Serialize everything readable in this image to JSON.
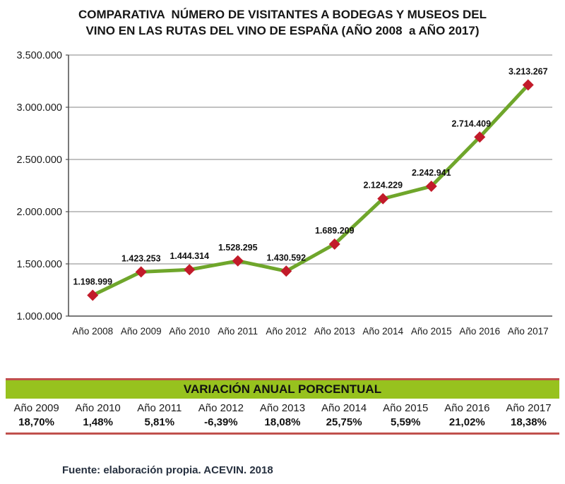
{
  "title": {
    "line1": "COMPARATIVA  NÚMERO DE VISITANTES A BODEGAS Y MUSEOS DEL",
    "line2": "VINO EN LAS RUTAS DEL VINO DE ESPAÑA (AÑO 2008  a AÑO 2017)"
  },
  "chart_data": {
    "type": "line",
    "title": "COMPARATIVA NÚMERO DE VISITANTES A BODEGAS Y MUSEOS DEL VINO EN LAS RUTAS DEL VINO DE ESPAÑA (AÑO 2008 a AÑO 2017)",
    "categories": [
      "Año 2008",
      "Año 2009",
      "Año 2010",
      "Año 2011",
      "Año 2012",
      "Año 2013",
      "Año 2014",
      "Año 2015",
      "Año 2016",
      "Año 2017"
    ],
    "values": [
      1198999,
      1423253,
      1444314,
      1528295,
      1430592,
      1689209,
      2124229,
      2242941,
      2714409,
      3213267
    ],
    "point_labels": [
      "1.198.999",
      "1.423.253",
      "1.444.314",
      "1.528.295",
      "1.430.592",
      "1.689.209",
      "2.124.229",
      "2.242.941",
      "2.714.409",
      "3.213.267"
    ],
    "ylim": [
      1000000,
      3500000
    ],
    "ytick_values": [
      1000000,
      1500000,
      2000000,
      2500000,
      3000000,
      3500000
    ],
    "ytick_labels": [
      "1.000.000",
      "1.500.000",
      "2.000.000",
      "2.500.000",
      "3.000.000",
      "3.500.000"
    ],
    "grid": true,
    "legend": false,
    "marker_shape": "diamond",
    "line_color": "#6FA62B",
    "marker_color": "#C21B2A",
    "grid_color": "#9E9E9E",
    "axis_color": "#4D4D4D",
    "label_dx": [
      0,
      0,
      0,
      0,
      0,
      0,
      0,
      0,
      -12,
      0
    ]
  },
  "variation_table": {
    "header": "VARIACIÓN ANUAL PORCENTUAL",
    "header_bg": "#97C21E",
    "border_color": "#C0504D",
    "columns": [
      {
        "year": "Año 2009",
        "value": "18,70%"
      },
      {
        "year": "Año 2010",
        "value": "1,48%"
      },
      {
        "year": "Año 2011",
        "value": "5,81%"
      },
      {
        "year": "Año 2012",
        "value": "-6,39%"
      },
      {
        "year": "Año 2013",
        "value": "18,08%"
      },
      {
        "year": "Año 2014",
        "value": "25,75%"
      },
      {
        "year": "Año 2015",
        "value": "5,59%"
      },
      {
        "year": "Año 2016",
        "value": "21,02%"
      },
      {
        "year": "Año 2017",
        "value": "18,38%"
      }
    ]
  },
  "footer": {
    "text": "Fuente: elaboración propia. ACEVIN. 2018"
  }
}
